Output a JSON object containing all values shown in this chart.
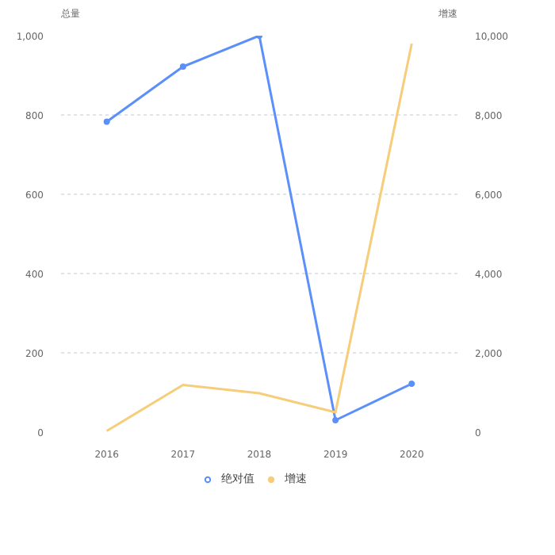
{
  "chart_data": {
    "type": "line",
    "categories": [
      "2016",
      "2017",
      "2018",
      "2019",
      "2020"
    ],
    "ylabel": "总量",
    "y2label": "增速",
    "ylim": [
      0,
      1000
    ],
    "yticks": [
      0,
      200,
      400,
      600,
      800,
      {
        "value": 1000,
        "label": "1,000"
      }
    ],
    "y2lim": [
      0,
      10000
    ],
    "y2ticks": [
      0,
      {
        "value": 2000,
        "label": "2,000"
      },
      {
        "value": 4000,
        "label": "4,000"
      },
      {
        "value": 6000,
        "label": "6,000"
      },
      {
        "value": 8000,
        "label": "8,000"
      },
      {
        "value": 10000,
        "label": "10,000"
      }
    ],
    "series": [
      {
        "name": "绝对值",
        "color": "#5b8ff9",
        "values": [
          783,
          922,
          1000,
          30,
          122
        ],
        "marker": "circle"
      },
      {
        "name": "增速",
        "color": "#f6cd7a",
        "values": [
          30,
          1190,
          980,
          500,
          9800
        ],
        "axis": "y2",
        "marker": "none"
      }
    ],
    "grid": "y",
    "legend": "bottom"
  }
}
